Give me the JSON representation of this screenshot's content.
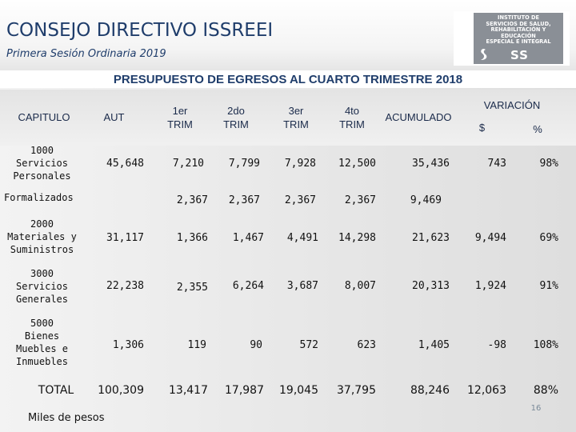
{
  "header": {
    "title": "CONSEJO DIRECTIVO ISSREEI",
    "subtitle": "Primera Sesión Ordinaria 2019"
  },
  "logo": {
    "lines": [
      "INSTITUTO DE",
      "SERVICIOS DE SALUD,",
      "REHABILITACIÓN Y",
      "EDUCACIÓN",
      "ESPECIAL E INTEGRAL"
    ],
    "short": "SS"
  },
  "table": {
    "title": "PRESUPUESTO DE EGRESOS AL CUARTO TRIMESTRE 2018",
    "headers": {
      "capitulo": "CAPITULO",
      "aut": "AUT",
      "trim1": [
        "1er",
        "TRIM"
      ],
      "trim2": [
        "2do",
        "TRIM"
      ],
      "trim3": [
        "3er",
        "TRIM"
      ],
      "trim4": [
        "4to",
        "TRIM"
      ],
      "acumulado": "ACUMULADO",
      "variacion": "VARIACIÓN",
      "var_pesos": "$",
      "var_pct": "%"
    },
    "rows": [
      {
        "label": [
          "1000",
          "Servicios",
          "Personales"
        ],
        "aut": "45,648",
        "t1": "7,210",
        "t2": "7,799",
        "t3": "7,928",
        "t4": "12,500",
        "acum": "35,436",
        "var": "743",
        "pct": "98%"
      },
      {
        "label": [
          "Formalizados"
        ],
        "aut": "",
        "t1": "2,367",
        "t2": "2,367",
        "t3": "2,367",
        "t4": "2,367",
        "acum": "9,469",
        "var": "",
        "pct": ""
      },
      {
        "label": [
          "2000",
          "Materiales y",
          "Suministros"
        ],
        "aut": "31,117",
        "t1": "1,366",
        "t2": "1,467",
        "t3": "4,491",
        "t4": "14,298",
        "acum": "21,623",
        "var": "9,494",
        "pct": "69%"
      },
      {
        "label": [
          "3000",
          "Servicios",
          "Generales"
        ],
        "aut": "22,238",
        "t1": "2,355",
        "t2": "6,264",
        "t3": "3,687",
        "t4": "8,007",
        "acum": "20,313",
        "var": "1,924",
        "pct": "91%"
      },
      {
        "label": [
          "5000",
          "Bienes",
          "Muebles e",
          "Inmuebles"
        ],
        "aut": "1,306",
        "t1": "119",
        "t2": "90",
        "t3": "572",
        "t4": "623",
        "acum": "1,405",
        "var": "-98",
        "pct": "108%"
      },
      {
        "label": [
          "TOTAL"
        ],
        "aut": "100,309",
        "t1": "13,417",
        "t2": "17,987",
        "t3": "19,045",
        "t4": "37,795",
        "acum": "88,246",
        "var": "12,063",
        "pct": "88%"
      }
    ]
  },
  "footer": {
    "note": "Miles de pesos",
    "page": "16"
  },
  "colors": {
    "title": "#1f3d6b",
    "logo_bg": "#8a8f96"
  }
}
